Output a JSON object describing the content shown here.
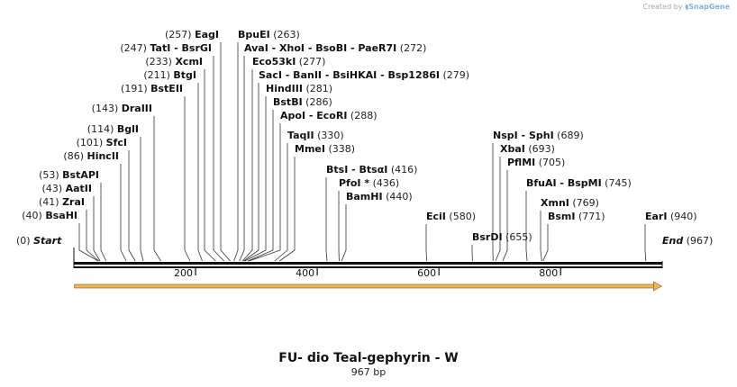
{
  "watermark": {
    "prefix": "Created by",
    "brand": "SnapGene"
  },
  "map": {
    "title": "FU- dio Teal-gephyrin - W",
    "length_label": "967 bp",
    "total_bp": 967,
    "start_label": "Start",
    "start_pos": "(0)",
    "end_label": "End",
    "end_pos": "(967)",
    "axis_ticks": [
      {
        "bp": 200,
        "label": "200"
      },
      {
        "bp": 400,
        "label": "400"
      },
      {
        "bp": 600,
        "label": "600"
      },
      {
        "bp": 800,
        "label": "800"
      }
    ],
    "feature": {
      "name": "orf-arrow",
      "start": 1,
      "end": 966,
      "color": "#f3b64a"
    },
    "sites": [
      {
        "pos": "(40)",
        "name": "BsaHI",
        "bp": 40,
        "side": "L"
      },
      {
        "pos": "(41)",
        "name": "ZraI",
        "bp": 41,
        "side": "L"
      },
      {
        "pos": "(43)",
        "name": "AatII",
        "bp": 43,
        "side": "L"
      },
      {
        "pos": "(53)",
        "name": "BstAPI",
        "bp": 53,
        "side": "L"
      },
      {
        "pos": "(86)",
        "name": "HincII",
        "bp": 86,
        "side": "L"
      },
      {
        "pos": "(101)",
        "name": "SfcI",
        "bp": 101,
        "side": "L"
      },
      {
        "pos": "(114)",
        "name": "BglI",
        "bp": 114,
        "side": "L"
      },
      {
        "pos": "(143)",
        "name": "DraIII",
        "bp": 143,
        "side": "L"
      },
      {
        "pos": "(191)",
        "name": "BstEII",
        "bp": 191,
        "side": "L"
      },
      {
        "pos": "(211)",
        "name": "BtgI",
        "bp": 211,
        "side": "L"
      },
      {
        "pos": "(233)",
        "name": "XcmI",
        "bp": 233,
        "side": "L"
      },
      {
        "pos": "(247)",
        "name": "TatI  - BsrGI",
        "bp": 247,
        "side": "L"
      },
      {
        "pos": "(257)",
        "name": "EagI",
        "bp": 257,
        "side": "L"
      },
      {
        "pos": "(263)",
        "name": "BpuEI",
        "bp": 263,
        "side": "R"
      },
      {
        "pos": "(272)",
        "name": "AvaI  - XhoI  - BsoBI  - PaeR7I",
        "bp": 272,
        "side": "R"
      },
      {
        "pos": "(277)",
        "name": "Eco53kI",
        "bp": 277,
        "side": "R"
      },
      {
        "pos": "(279)",
        "name": "SacI  - BanII  - BsiHKAI  - Bsp1286I",
        "bp": 279,
        "side": "R"
      },
      {
        "pos": "(281)",
        "name": "HindIII",
        "bp": 281,
        "side": "R"
      },
      {
        "pos": "(286)",
        "name": "BstBI",
        "bp": 286,
        "side": "R"
      },
      {
        "pos": "(288)",
        "name": "ApoI  - EcoRI",
        "bp": 288,
        "side": "R"
      },
      {
        "pos": "(330)",
        "name": "TaqII",
        "bp": 330,
        "side": "R"
      },
      {
        "pos": "(338)",
        "name": "MmeI",
        "bp": 338,
        "side": "R"
      },
      {
        "pos": "(416)",
        "name": "BtsI  - BtsαI",
        "bp": 416,
        "side": "R"
      },
      {
        "pos": "(436)",
        "name": "PfoI *",
        "bp": 436,
        "side": "R"
      },
      {
        "pos": "(440)",
        "name": "BamHI",
        "bp": 440,
        "side": "R"
      },
      {
        "pos": "(580)",
        "name": "EciI",
        "bp": 580,
        "side": "R"
      },
      {
        "pos": "(655)",
        "name": "BsrDI",
        "bp": 655,
        "side": "R"
      },
      {
        "pos": "(689)",
        "name": "NspI  - SphI",
        "bp": 689,
        "side": "R"
      },
      {
        "pos": "(693)",
        "name": "XbaI",
        "bp": 693,
        "side": "R"
      },
      {
        "pos": "(705)",
        "name": "PflMI",
        "bp": 705,
        "side": "R"
      },
      {
        "pos": "(745)",
        "name": "BfuAI  - BspMI",
        "bp": 745,
        "side": "R"
      },
      {
        "pos": "(769)",
        "name": "XmnI",
        "bp": 769,
        "side": "R"
      },
      {
        "pos": "(771)",
        "name": "BsmI",
        "bp": 771,
        "side": "R"
      },
      {
        "pos": "(940)",
        "name": "EarI",
        "bp": 940,
        "side": "R"
      }
    ]
  }
}
